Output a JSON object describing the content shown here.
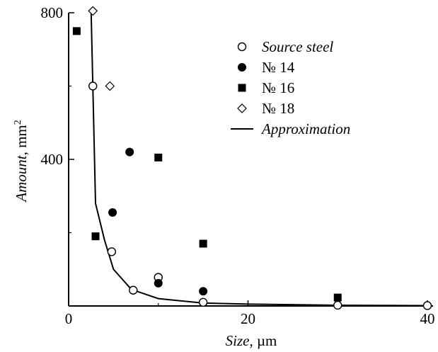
{
  "chart_data": {
    "type": "scatter",
    "title": "",
    "xlabel_italic": "Size",
    "xlabel_unit": ", µm",
    "ylabel_italic": "Amount",
    "ylabel_unit": ", mm",
    "ylabel_sup": "2",
    "xlim": [
      0,
      40
    ],
    "ylim": [
      0,
      800
    ],
    "xticks": [
      0,
      20,
      40
    ],
    "xtick_labels": [
      "0",
      "20",
      "40"
    ],
    "yticks": [
      400,
      800
    ],
    "ytick_labels": [
      "400",
      "800"
    ],
    "grid": false,
    "legend_position": "top-right",
    "series": [
      {
        "name": "Source steel",
        "marker": "circle-open",
        "points": [
          [
            2.7,
            600
          ],
          [
            4.8,
            148
          ],
          [
            7.2,
            43
          ],
          [
            10,
            78
          ],
          [
            15,
            10
          ],
          [
            30,
            2
          ],
          [
            40,
            1
          ]
        ]
      },
      {
        "name": "№ 14",
        "marker": "circle-filled",
        "points": [
          [
            4.9,
            255
          ],
          [
            6.8,
            420
          ],
          [
            10,
            62
          ],
          [
            15,
            40
          ]
        ]
      },
      {
        "name": "№ 16",
        "marker": "square-filled",
        "points": [
          [
            0.9,
            750
          ],
          [
            3,
            190
          ],
          [
            10,
            405
          ],
          [
            15,
            170
          ],
          [
            30,
            23
          ]
        ]
      },
      {
        "name": "№ 18",
        "marker": "diamond-open",
        "points": [
          [
            2.7,
            805
          ],
          [
            4.6,
            600
          ]
        ]
      },
      {
        "name": "Approximation",
        "marker": "line",
        "points": [
          [
            2.5,
            810
          ],
          [
            3,
            280
          ],
          [
            4,
            180
          ],
          [
            5,
            100
          ],
          [
            7,
            45
          ],
          [
            10,
            20
          ],
          [
            15,
            8
          ],
          [
            20,
            5
          ],
          [
            30,
            2
          ],
          [
            40,
            1
          ]
        ]
      }
    ]
  }
}
